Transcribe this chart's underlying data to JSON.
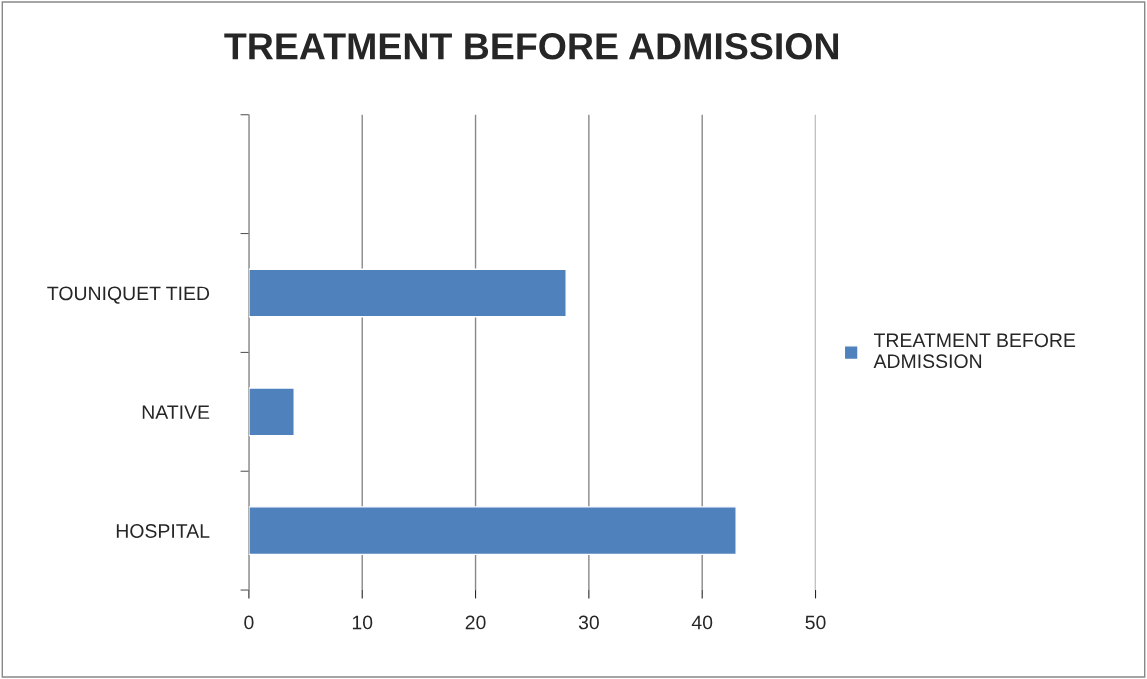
{
  "chart_data": {
    "type": "bar",
    "orientation": "horizontal",
    "title": "TREATMENT BEFORE ADMISSION",
    "categories": [
      null,
      "TOUNIQUET TIED",
      "NATIVE",
      "HOSPITAL"
    ],
    "series": [
      {
        "name": "TREATMENT BEFORE ADMISSION",
        "color": "#4f81bd",
        "values": [
          null,
          28,
          4,
          43
        ]
      }
    ],
    "xlim": [
      0,
      50
    ],
    "xticks": [
      0,
      10,
      20,
      30,
      40,
      50
    ],
    "grid": "x",
    "legend": "right"
  }
}
